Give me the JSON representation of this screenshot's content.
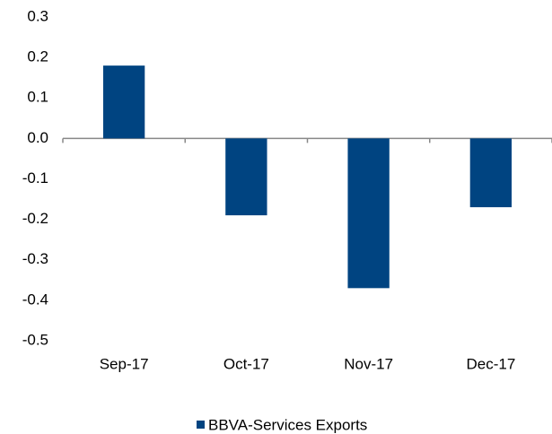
{
  "chart_data": {
    "type": "bar",
    "categories": [
      "Sep-17",
      "Oct-17",
      "Nov-17",
      "Dec-17"
    ],
    "series": [
      {
        "name": "BBVA-Services Exports",
        "color": "#004481",
        "values": [
          0.18,
          -0.19,
          -0.37,
          -0.17
        ]
      }
    ],
    "ylim": [
      -0.5,
      0.3
    ],
    "yticks": [
      0.3,
      0.2,
      0.1,
      {
        "value": 0,
        "label": "0.0"
      },
      -0.1,
      -0.2,
      -0.3,
      -0.4,
      -0.5
    ],
    "grid": false,
    "legend": "bottom"
  }
}
